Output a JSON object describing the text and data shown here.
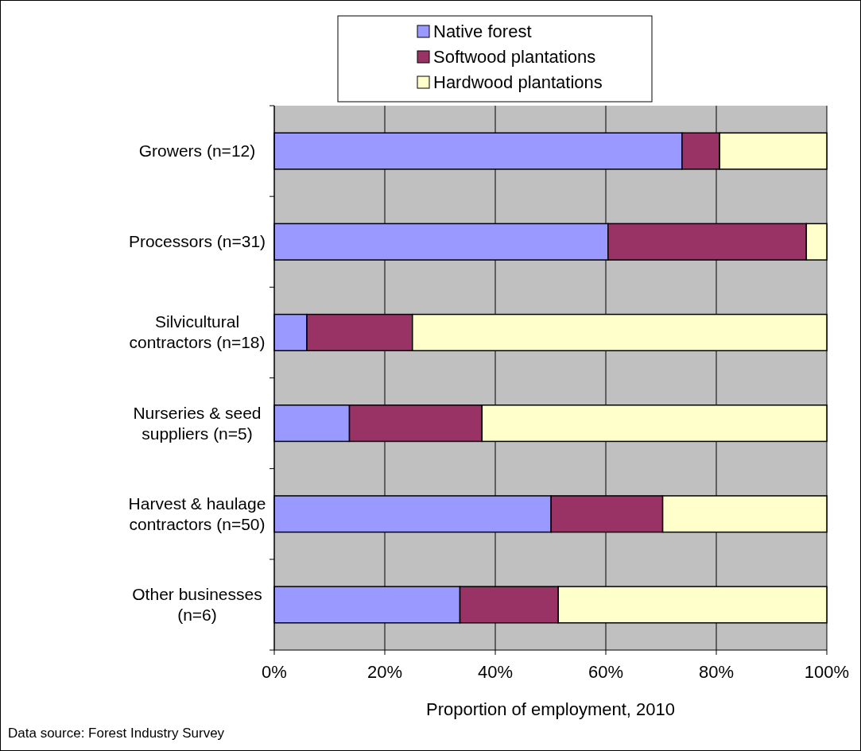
{
  "chart_data": {
    "type": "bar",
    "orientation": "horizontal",
    "stacked": true,
    "xlabel": "Proportion of employment, 2010",
    "categories": [
      "Growers (n=12)",
      "Processors (n=31)",
      "Silvicultural\ncontractors (n=18)",
      "Nurseries & seed\nsuppliers (n=5)",
      "Harvest & haulage\ncontractors (n=50)",
      "Other businesses\n(n=6)"
    ],
    "series": [
      {
        "name": "Native forest",
        "color": "#9999ff",
        "values": [
          73.8,
          60.4,
          5.9,
          13.6,
          50.1,
          33.6
        ]
      },
      {
        "name": "Softwood plantations",
        "color": "#993366",
        "values": [
          6.8,
          35.9,
          19.1,
          24.0,
          20.2,
          17.8
        ]
      },
      {
        "name": "Hardwood plantations",
        "color": "#ffffcc",
        "values": [
          19.4,
          3.7,
          75.0,
          62.4,
          29.7,
          48.6
        ]
      }
    ],
    "xlim": [
      0,
      100
    ],
    "xticks": [
      {
        "value": 0,
        "label": "0%"
      },
      {
        "value": 20,
        "label": "20%"
      },
      {
        "value": 40,
        "label": "40%"
      },
      {
        "value": 60,
        "label": "60%"
      },
      {
        "value": 80,
        "label": "80%"
      },
      {
        "value": 100,
        "label": "100%"
      }
    ],
    "grid": "x",
    "legend": "top",
    "annotations": [
      "Data source: Forest Industry Survey"
    ]
  }
}
